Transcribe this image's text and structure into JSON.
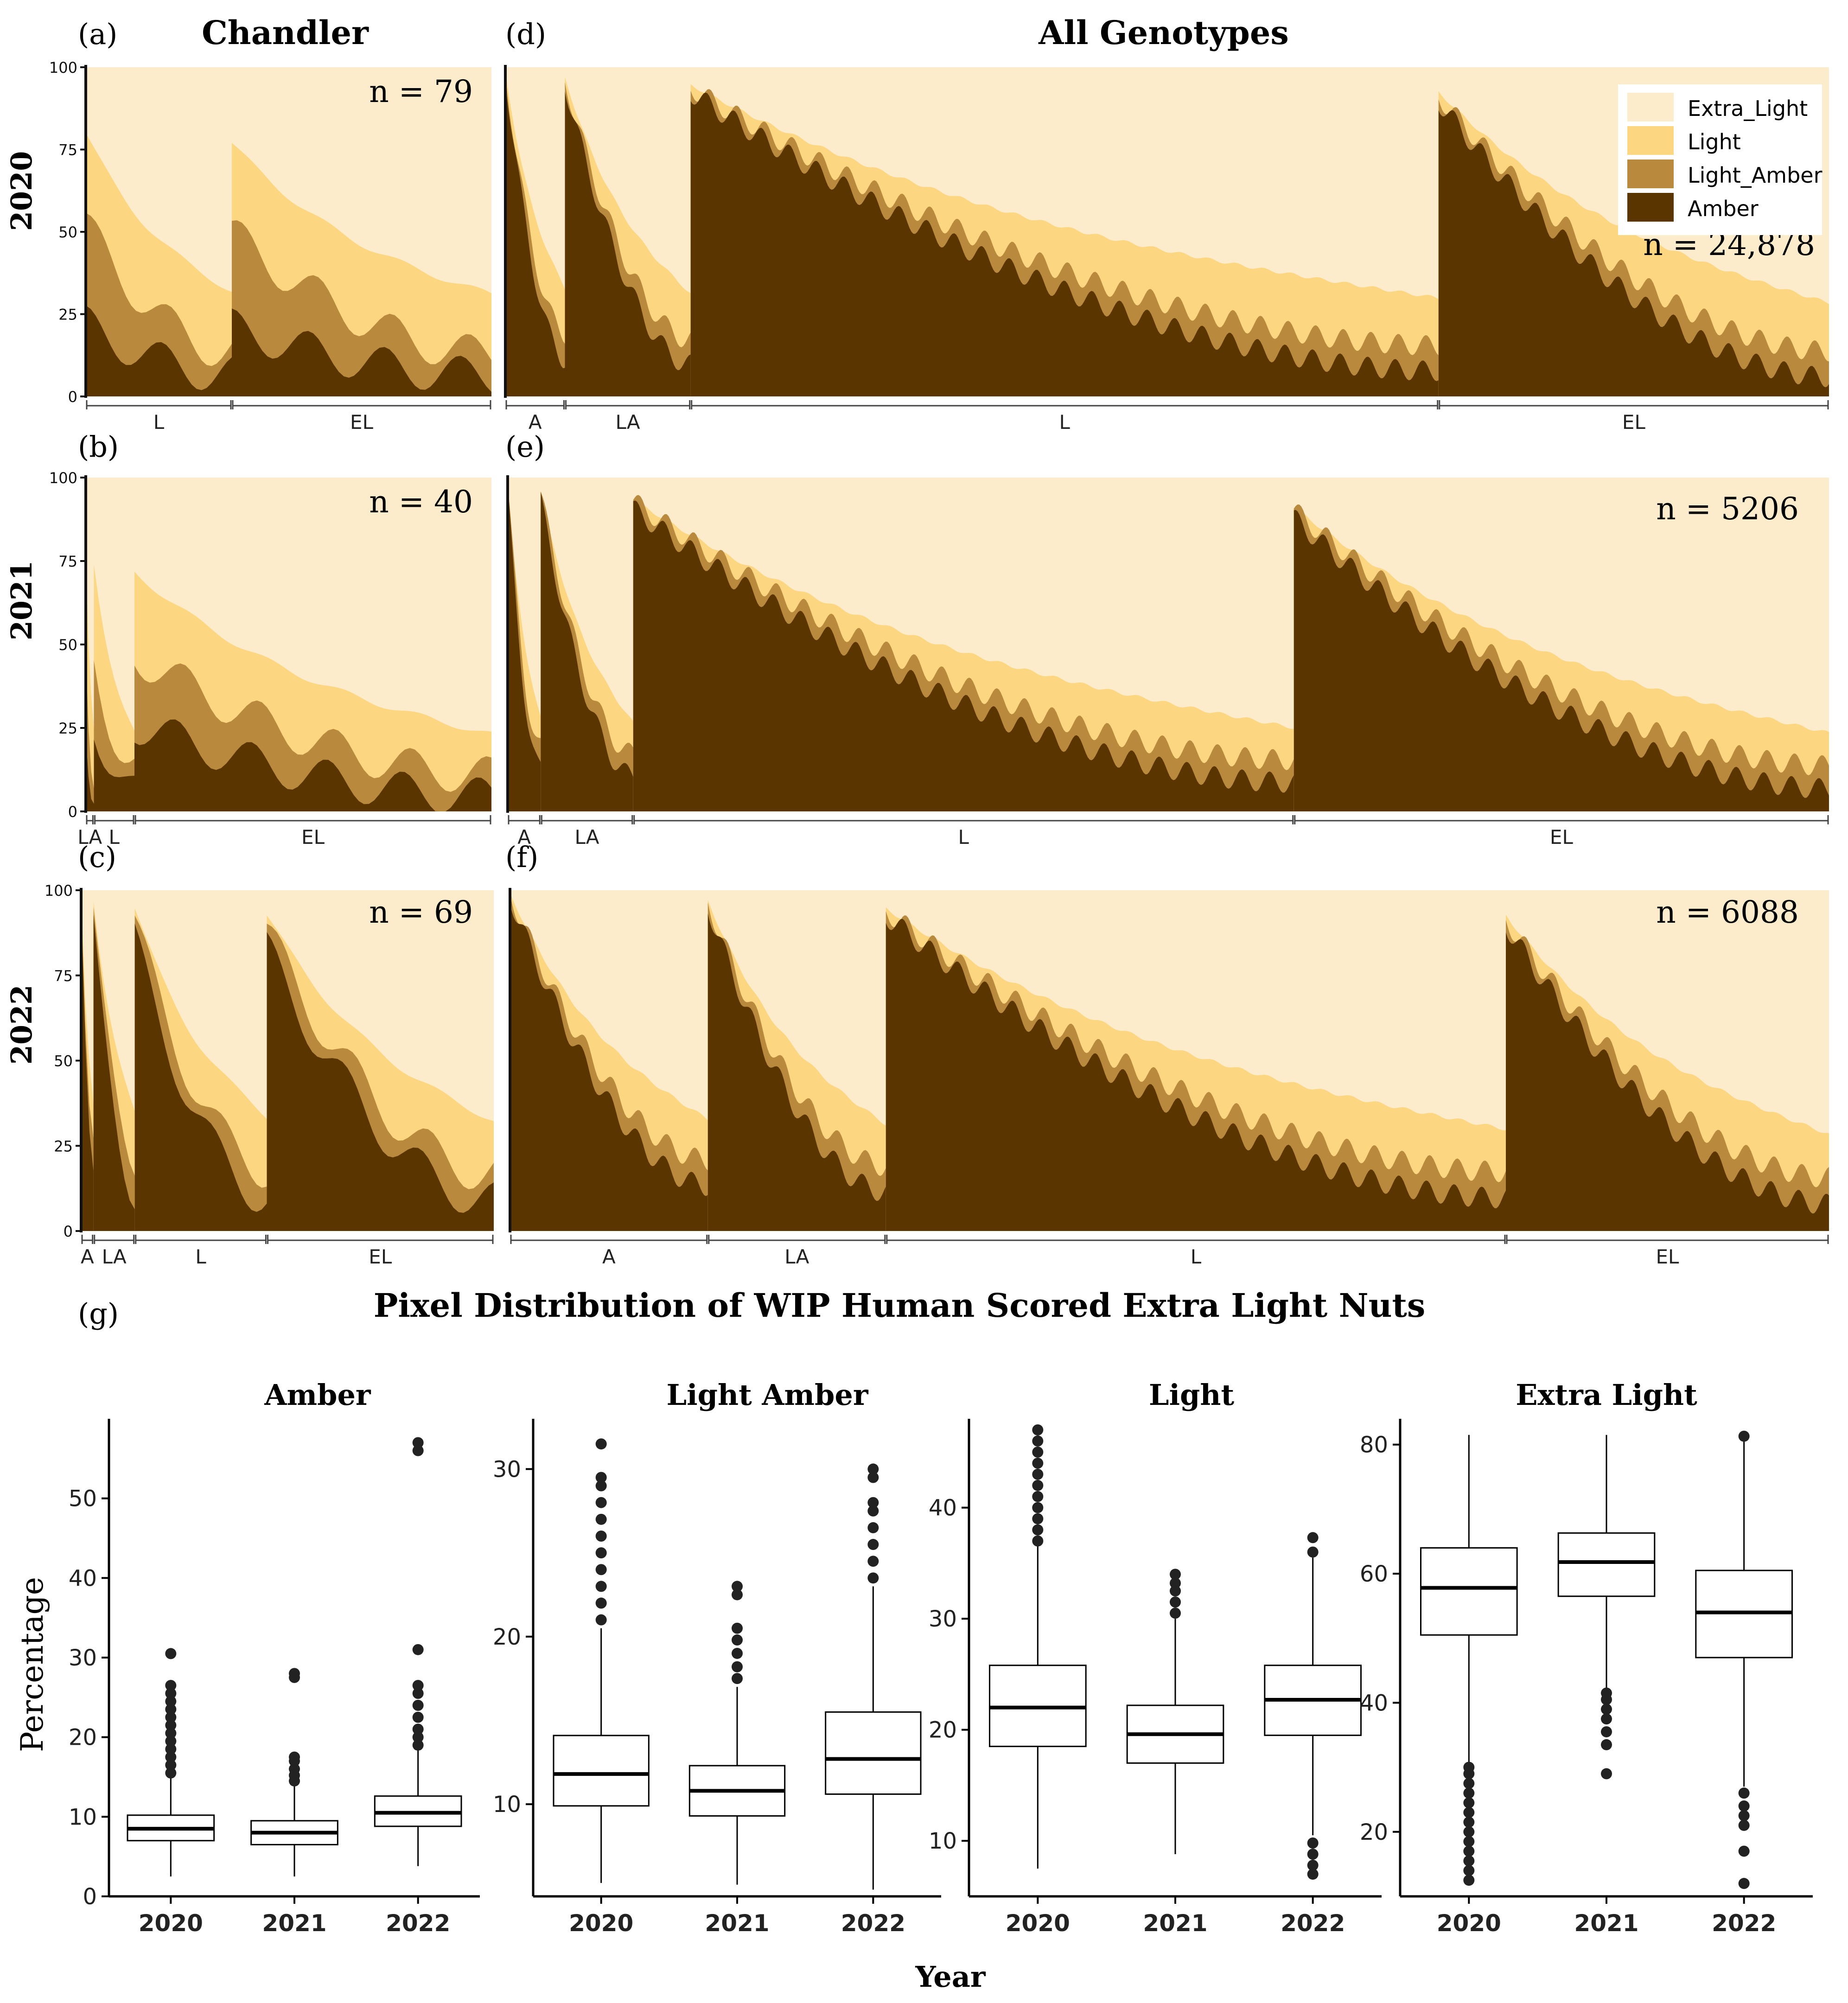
{
  "colors": {
    "amber": "#5a3500",
    "light_amber": "#b98a3e",
    "light": "#fcd680",
    "extra_light": "#fdeccb"
  },
  "headings": {
    "chandler": "Chandler",
    "all_genotypes": "All Genotypes",
    "g_title": "Pixel Distribution of WIP Human Scored Extra Light Nuts"
  },
  "legend": [
    "Extra_Light",
    "Light",
    "Light_Amber",
    "Amber"
  ],
  "row_labels": [
    "2020",
    "2021",
    "2022"
  ],
  "panel_letters": [
    "(a)",
    "(b)",
    "(c)",
    "(d)",
    "(e)",
    "(f)",
    "(g)"
  ],
  "stack_panels": [
    {
      "id": "a",
      "n_label": "n = 79",
      "yticks": [
        0,
        25,
        50,
        75,
        100
      ],
      "groups": [
        {
          "label": "L",
          "frac": 0.36
        },
        {
          "label": "EL",
          "frac": 0.64
        }
      ],
      "amber": [
        22,
        6
      ],
      "light_amber": [
        52,
        12
      ],
      "light": [
        80,
        30
      ]
    },
    {
      "id": "b",
      "n_label": "n = 40",
      "yticks": [
        0,
        25,
        50,
        75,
        100
      ],
      "groups": [
        {
          "label": "LA",
          "frac": 0.02
        },
        {
          "label": "L",
          "frac": 0.1
        },
        {
          "label": "EL",
          "frac": 0.88
        }
      ],
      "amber": [
        28,
        4
      ],
      "light_amber": [
        50,
        10
      ],
      "light": [
        76,
        22
      ]
    },
    {
      "id": "c",
      "n_label": "n = 69",
      "yticks": [
        0,
        25,
        50,
        75,
        100
      ],
      "groups": [
        {
          "label": "A",
          "frac": 0.03
        },
        {
          "label": "LA",
          "frac": 0.1
        },
        {
          "label": "L",
          "frac": 0.32
        },
        {
          "label": "EL",
          "frac": 0.55
        }
      ],
      "amber": [
        90,
        7
      ],
      "light_amber": [
        95,
        15
      ],
      "light": [
        99,
        31
      ]
    },
    {
      "id": "d",
      "n_label": "n = 24,878",
      "groups": [
        {
          "label": "A",
          "frac": 0.045
        },
        {
          "label": "LA",
          "frac": 0.095
        },
        {
          "label": "L",
          "frac": 0.565
        },
        {
          "label": "EL",
          "frac": 0.295
        }
      ],
      "amber": [
        98,
        4
      ],
      "light_amber": [
        99,
        12
      ],
      "light": [
        99,
        27
      ]
    },
    {
      "id": "e",
      "n_label": "n = 5206",
      "groups": [
        {
          "label": "A",
          "frac": 0.025
        },
        {
          "label": "LA",
          "frac": 0.07
        },
        {
          "label": "L",
          "frac": 0.5
        },
        {
          "label": "EL",
          "frac": 0.405
        }
      ],
      "amber": [
        96,
        5
      ],
      "light_amber": [
        98,
        12
      ],
      "light": [
        98,
        22
      ]
    },
    {
      "id": "f",
      "n_label": "n = 6088",
      "groups": [
        {
          "label": "A",
          "frac": 0.15
        },
        {
          "label": "LA",
          "frac": 0.135
        },
        {
          "label": "L",
          "frac": 0.47
        },
        {
          "label": "EL",
          "frac": 0.245
        }
      ],
      "amber": [
        98,
        6
      ],
      "light_amber": [
        99,
        14
      ],
      "light": [
        99,
        27
      ]
    }
  ],
  "chart_data": [
    {
      "type": "box",
      "title": "Amber",
      "xlabel": "Year",
      "ylabel": "Percentage",
      "categories": [
        "2020",
        "2021",
        "2022"
      ],
      "ylim": [
        0,
        60
      ],
      "yticks": [
        0,
        10,
        20,
        30,
        40,
        50
      ],
      "boxes": [
        {
          "whisker_low": 2.5,
          "q1": 7.0,
          "median": 8.5,
          "q3": 10.2,
          "whisker_high": 15.0,
          "outliers": [
            15.5,
            16.5,
            17.5,
            18.5,
            19.5,
            20.5,
            21.5,
            22.5,
            23.5,
            24.5,
            25.5,
            26.5,
            30.5
          ]
        },
        {
          "whisker_low": 2.5,
          "q1": 6.5,
          "median": 8.0,
          "q3": 9.5,
          "whisker_high": 14.0,
          "outliers": [
            14.5,
            15.2,
            16.0,
            17.0,
            17.5,
            27.5,
            28.0
          ]
        },
        {
          "whisker_low": 3.8,
          "q1": 8.8,
          "median": 10.5,
          "q3": 12.6,
          "whisker_high": 18.5,
          "outliers": [
            19.0,
            20.0,
            21.0,
            22.5,
            24.0,
            25.5,
            26.5,
            31.0,
            56.0,
            57.0
          ]
        }
      ]
    },
    {
      "type": "box",
      "title": "Light Amber",
      "xlabel": "Year",
      "ylabel": "Percentage",
      "categories": [
        "2020",
        "2021",
        "2022"
      ],
      "ylim": [
        4.5,
        33
      ],
      "yticks": [
        10,
        20,
        30
      ],
      "boxes": [
        {
          "whisker_low": 5.3,
          "q1": 9.9,
          "median": 11.8,
          "q3": 14.1,
          "whisker_high": 20.5,
          "outliers": [
            21.0,
            22.0,
            23.0,
            24.0,
            25.0,
            26.0,
            27.0,
            28.0,
            29.0,
            29.5,
            31.5
          ]
        },
        {
          "whisker_low": 5.2,
          "q1": 9.3,
          "median": 10.8,
          "q3": 12.3,
          "whisker_high": 17.0,
          "outliers": [
            17.5,
            18.2,
            19.0,
            19.8,
            20.5,
            22.5,
            23.0
          ]
        },
        {
          "whisker_low": 4.9,
          "q1": 10.6,
          "median": 12.7,
          "q3": 15.5,
          "whisker_high": 23.0,
          "outliers": [
            23.5,
            24.5,
            25.5,
            26.5,
            27.5,
            28.0,
            29.5,
            30.0
          ]
        }
      ]
    },
    {
      "type": "box",
      "title": "Light",
      "xlabel": "Year",
      "ylabel": "Percentage",
      "categories": [
        "2020",
        "2021",
        "2022"
      ],
      "ylim": [
        5,
        48
      ],
      "yticks": [
        10,
        20,
        30,
        40
      ],
      "boxes": [
        {
          "whisker_low": 7.5,
          "q1": 18.5,
          "median": 22.0,
          "q3": 25.8,
          "whisker_high": 36.8,
          "outliers": [
            37.0,
            38.0,
            39.0,
            40.0,
            41.0,
            42.0,
            43.0,
            44.0,
            45.0,
            46.0,
            47.0
          ]
        },
        {
          "whisker_low": 8.8,
          "q1": 17.0,
          "median": 19.6,
          "q3": 22.2,
          "whisker_high": 30.0,
          "outliers": [
            30.5,
            31.5,
            32.5,
            33.2,
            34.0
          ]
        },
        {
          "whisker_low": 10.5,
          "q1": 19.5,
          "median": 22.7,
          "q3": 25.8,
          "whisker_high": 35.5,
          "outliers": [
            7.0,
            7.8,
            8.8,
            9.8,
            36.0,
            37.3
          ]
        }
      ]
    },
    {
      "type": "box",
      "title": "Extra Light",
      "xlabel": "Year",
      "ylabel": "Percentage",
      "categories": [
        "2020",
        "2021",
        "2022"
      ],
      "ylim": [
        10,
        84
      ],
      "yticks": [
        20,
        40,
        60,
        80
      ],
      "boxes": [
        {
          "whisker_low": 30.5,
          "q1": 50.5,
          "median": 57.8,
          "q3": 64.0,
          "whisker_high": 81.5,
          "outliers": [
            12.5,
            14.0,
            15.5,
            17.0,
            18.5,
            20.0,
            21.5,
            23.0,
            24.5,
            26.0,
            27.5,
            29.0,
            30.0
          ]
        },
        {
          "whisker_low": 42.0,
          "q1": 56.5,
          "median": 61.8,
          "q3": 66.3,
          "whisker_high": 81.5,
          "outliers": [
            29.0,
            33.5,
            35.5,
            37.5,
            39.0,
            40.5,
            41.5
          ]
        },
        {
          "whisker_low": 27.0,
          "q1": 47.0,
          "median": 54.0,
          "q3": 60.5,
          "whisker_high": 81.0,
          "outliers": [
            12.0,
            17.0,
            21.0,
            22.5,
            24.0,
            26.0,
            81.3
          ]
        }
      ]
    }
  ]
}
